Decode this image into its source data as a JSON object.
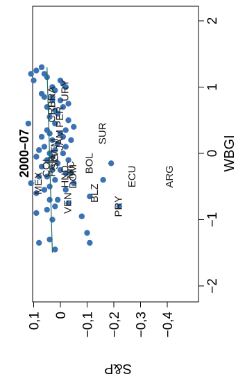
{
  "chart_data": {
    "type": "scatter",
    "orientation": "rotated-90-ccw",
    "title": "2000–07",
    "xlabel": "WBGI",
    "ylabel": "S&P",
    "xlim": [
      -2.3,
      2.2
    ],
    "ylim": [
      -0.48,
      0.2
    ],
    "x_ticks": [
      -2,
      -1,
      0,
      1,
      2
    ],
    "x_tick_labels": [
      "−2",
      "−1",
      "0",
      "1",
      "2"
    ],
    "y_ticks": [
      0.1,
      0,
      -0.1,
      -0.2,
      -0.3,
      -0.4
    ],
    "y_tick_labels": [
      "0,1",
      "0",
      "−0,1",
      "−0,2",
      "−0,3",
      "−0,4"
    ],
    "grid": false,
    "point_color": "#3a72b4",
    "line_color": "#1e6b5a",
    "points": [
      [
        1.3,
        0.07
      ],
      [
        1.25,
        0.09
      ],
      [
        1.2,
        0.11
      ],
      [
        1.2,
        0.06
      ],
      [
        1.15,
        0.05
      ],
      [
        1.1,
        0.1
      ],
      [
        1.1,
        0.0
      ],
      [
        1.05,
        -0.01
      ],
      [
        1.0,
        -0.02
      ],
      [
        1.0,
        0.03
      ],
      [
        0.95,
        0.02
      ],
      [
        0.9,
        0.07
      ],
      [
        0.85,
        0.06
      ],
      [
        0.85,
        0.03
      ],
      [
        0.8,
        0.03
      ],
      [
        0.8,
        0.0
      ],
      [
        0.75,
        -0.03
      ],
      [
        0.7,
        -0.01
      ],
      [
        0.7,
        0.05
      ],
      [
        0.65,
        0.02
      ],
      [
        0.6,
        0.01
      ],
      [
        0.55,
        0.04
      ],
      [
        0.5,
        -0.03
      ],
      [
        0.45,
        0.12
      ],
      [
        0.45,
        0.02
      ],
      [
        0.4,
        -0.05
      ],
      [
        0.35,
        -0.02
      ],
      [
        0.35,
        0.05
      ],
      [
        0.3,
        0.04
      ],
      [
        0.3,
        0.0
      ],
      [
        0.25,
        -0.01
      ],
      [
        0.25,
        0.07
      ],
      [
        0.2,
        0.03
      ],
      [
        0.2,
        -0.04
      ],
      [
        0.15,
        0.01
      ],
      [
        0.1,
        0.06
      ],
      [
        0.1,
        -0.02
      ],
      [
        0.05,
        0.02
      ],
      [
        0.05,
        0.08
      ],
      [
        0.0,
        0.04
      ],
      [
        0.0,
        -0.01
      ],
      [
        -0.05,
        0.03
      ],
      [
        -0.05,
        0.09
      ],
      [
        -0.1,
        -0.03
      ],
      [
        -0.1,
        0.05
      ],
      [
        -0.15,
        0.01
      ],
      [
        -0.15,
        -0.19
      ],
      [
        -0.2,
        0.07
      ],
      [
        -0.25,
        0.03
      ],
      [
        -0.25,
        0.0
      ],
      [
        -0.3,
        -0.02
      ],
      [
        -0.3,
        -0.04
      ],
      [
        -0.35,
        0.05
      ],
      [
        -0.35,
        0.08
      ],
      [
        -0.4,
        0.02
      ],
      [
        -0.4,
        -0.16
      ],
      [
        -0.45,
        0.11
      ],
      [
        -0.45,
        -0.05
      ],
      [
        -0.5,
        0.04
      ],
      [
        -0.55,
        0.06
      ],
      [
        -0.55,
        -0.02
      ],
      [
        -0.6,
        0.09
      ],
      [
        -0.65,
        -0.11
      ],
      [
        -0.7,
        0.04
      ],
      [
        -0.7,
        0.01
      ],
      [
        -0.75,
        -0.03
      ],
      [
        -0.8,
        -0.22
      ],
      [
        -0.8,
        0.02
      ],
      [
        -0.85,
        0.05
      ],
      [
        -0.9,
        0.09
      ],
      [
        -0.95,
        -0.08
      ],
      [
        -1.0,
        0.03
      ],
      [
        -1.2,
        -0.1
      ],
      [
        -1.3,
        0.04
      ],
      [
        -1.35,
        0.08
      ],
      [
        -1.45,
        0.02
      ],
      [
        -1.35,
        -0.11
      ]
    ],
    "trend_line": {
      "x": [
        -1.5,
        1.3
      ],
      "y": [
        0.03,
        0.05
      ]
    },
    "annotations": [
      {
        "text": "URY",
        "x": 0.95,
        "y": -0.02
      },
      {
        "text": "CRI",
        "x": 0.6,
        "y": 0.03
      },
      {
        "text": "BRA",
        "x": 0.85,
        "y": 0.03
      },
      {
        "text": "PER",
        "x": 0.55,
        "y": 0.0
      },
      {
        "text": "SUR",
        "x": 0.3,
        "y": -0.16
      },
      {
        "text": "BOL",
        "x": -0.15,
        "y": -0.11
      },
      {
        "text": "MEX",
        "x": -0.45,
        "y": 0.08
      },
      {
        "text": "COL",
        "x": -0.2,
        "y": 0.05
      },
      {
        "text": "PAN",
        "x": -0.2,
        "y": 0.03
      },
      {
        "text": "GTM",
        "x": 0.05,
        "y": 0.02
      },
      {
        "text": "JAM",
        "x": 0.2,
        "y": 0.0
      },
      {
        "text": "SLV",
        "x": -0.1,
        "y": 0.02
      },
      {
        "text": "HND",
        "x": -0.35,
        "y": -0.02
      },
      {
        "text": "NIC",
        "x": -0.25,
        "y": -0.04
      },
      {
        "text": "DOM",
        "x": -0.35,
        "y": -0.05
      },
      {
        "text": "VEN",
        "x": -0.75,
        "y": -0.03
      },
      {
        "text": "BLZ",
        "x": -0.6,
        "y": -0.13
      },
      {
        "text": "PRY",
        "x": -0.8,
        "y": -0.22
      },
      {
        "text": "ECU",
        "x": -0.35,
        "y": -0.27
      },
      {
        "text": "ARG",
        "x": -0.35,
        "y": -0.41
      }
    ]
  }
}
